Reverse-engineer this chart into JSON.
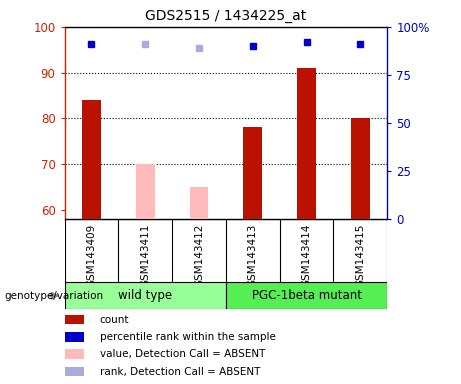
{
  "title": "GDS2515 / 1434225_at",
  "samples": [
    "GSM143409",
    "GSM143411",
    "GSM143412",
    "GSM143413",
    "GSM143414",
    "GSM143415"
  ],
  "count_values": [
    84,
    null,
    null,
    78,
    91,
    80
  ],
  "count_absent_values": [
    null,
    70,
    65,
    null,
    null,
    null
  ],
  "rank_values": [
    91,
    null,
    null,
    90,
    92,
    91
  ],
  "rank_absent_values": [
    null,
    91,
    89,
    null,
    null,
    null
  ],
  "ylim_left": [
    58,
    100
  ],
  "ylim_right": [
    0,
    100
  ],
  "yticks_left": [
    60,
    70,
    80,
    90,
    100
  ],
  "ytick_labels_left": [
    "60",
    "70",
    "80",
    "90",
    "100"
  ],
  "yticks_right_vals": [
    0,
    25,
    50,
    75,
    100
  ],
  "ytick_labels_right": [
    "0",
    "25",
    "50",
    "75",
    "100%"
  ],
  "left_axis_color": "#cc2200",
  "right_axis_color": "#0000cc",
  "bar_color_present": "#bb1100",
  "bar_color_absent": "#ffbbbb",
  "rank_color_present": "#0000cc",
  "rank_color_absent": "#aaaadd",
  "bg_color": "#ffffff",
  "plot_bg_color": "#ffffff",
  "label_box_color": "#cccccc",
  "group1_label": "wild type",
  "group2_label": "PGC-1beta mutant",
  "group1_color": "#99ff99",
  "group2_color": "#55ee55",
  "group_label_text": "genotype/variation",
  "bar_width": 0.35,
  "rank_marker_size": 5,
  "ybase": 58,
  "legend_items": [
    {
      "color": "#bb1100",
      "label": "count"
    },
    {
      "color": "#0000cc",
      "label": "percentile rank within the sample"
    },
    {
      "color": "#ffbbbb",
      "label": "value, Detection Call = ABSENT"
    },
    {
      "color": "#aaaadd",
      "label": "rank, Detection Call = ABSENT"
    }
  ]
}
